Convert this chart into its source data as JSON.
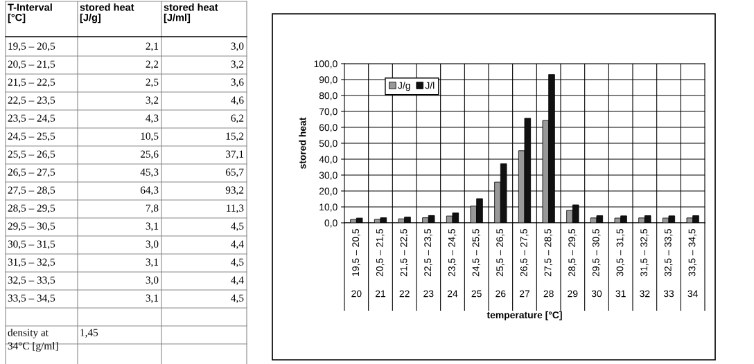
{
  "chart_data": [
    {
      "type": "other",
      "annotations": [
        "T-Interval\n[°C]",
        "stored heat\n[J/g]",
        "stored heat\n[J/ml]",
        "19,5 – 20,5",
        "2,1",
        "3,0",
        "20,5 – 21,5",
        "2,2",
        "3,2",
        "21,5 – 22,5",
        "2,5",
        "3,6",
        "22,5 – 23,5",
        "3,2",
        "4,6",
        "23,5 – 24,5",
        "4,3",
        "6,2",
        "24,5 – 25,5",
        "10,5",
        "15,2",
        "25,5 – 26,5",
        "25,6",
        "37,1",
        "26,5 – 27,5",
        "45,3",
        "65,7",
        "27,5 – 28,5",
        "64,3",
        "93,2",
        "28,5 – 29,5",
        "7,8",
        "11,3",
        "29,5 – 30,5",
        "3,1",
        "4,5",
        "30,5 – 31,5",
        "3,0",
        "4,4",
        "31,5 – 32,5",
        "3,1",
        "4,5",
        "32,5 – 33,5",
        "3,0",
        "4,4",
        "33,5 – 34,5",
        "3,1",
        "4,5",
        "density at\n34°C [g/ml]",
        "1,45"
      ]
    },
    {
      "type": "bar",
      "xlabel": "temperature [°C]",
      "ylabel": "stored heat",
      "categories": [
        "19,5 – 20,5",
        "20,5 – 21,5",
        "21,5 – 22,5",
        "22,5 – 23,5",
        "23,5 – 24,5",
        "24,5 – 25,5",
        "25,5 – 26,5",
        "26,5 – 27,5",
        "27,5 – 28,5",
        "28,5 – 29,5",
        "29,5 – 30,5",
        "30,5 – 31,5",
        "31,5 – 32,5",
        "32,5 – 33,5",
        "33,5 – 34,5"
      ],
      "series": [
        {
          "name": "J/g",
          "color": "#999999",
          "values": [
            2.1,
            2.2,
            2.5,
            3.2,
            4.3,
            10.5,
            25.6,
            45.3,
            64.3,
            7.8,
            3.1,
            3.0,
            3.1,
            3.0,
            3.1
          ]
        },
        {
          "name": "J/l",
          "color": "#111111",
          "values": [
            3.0,
            3.2,
            3.6,
            4.6,
            6.2,
            15.2,
            37.1,
            65.7,
            93.2,
            11.3,
            4.5,
            4.4,
            4.5,
            4.4,
            4.5
          ]
        }
      ],
      "ylim": [
        0,
        100
      ],
      "yticks": [
        {
          "value": 0,
          "label": "0,0"
        },
        {
          "value": 10,
          "label": "10,0"
        },
        {
          "value": 20,
          "label": "20,0"
        },
        {
          "value": 30,
          "label": "30,0"
        },
        {
          "value": 40,
          "label": "40,0"
        },
        {
          "value": 50,
          "label": "50,0"
        },
        {
          "value": 60,
          "label": "60,0"
        },
        {
          "value": 70,
          "label": "70,0"
        },
        {
          "value": 80,
          "label": "80,0"
        },
        {
          "value": 90,
          "label": "90,0"
        },
        {
          "value": 100,
          "label": "100,0"
        }
      ],
      "grid": true,
      "legend": "top left",
      "x2lim": [
        19.5,
        34.5
      ],
      "x2ticks": [
        20,
        21,
        22,
        23,
        24,
        25,
        26,
        27,
        28,
        29,
        30,
        31,
        32,
        33,
        34
      ]
    }
  ]
}
